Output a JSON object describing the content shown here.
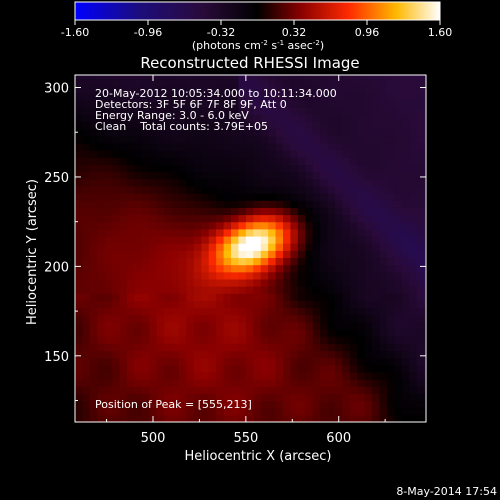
{
  "chart_data": {
    "type": "heatmap",
    "title": "Reconstructed RHESSI Image",
    "xlabel": "Heliocentric X (arcsec)",
    "ylabel": "Heliocentric Y (arcsec)",
    "xlim": [
      458,
      647
    ],
    "ylim": [
      113,
      307
    ],
    "x_ticks": [
      500,
      550,
      600
    ],
    "y_ticks": [
      150,
      200,
      250,
      300
    ],
    "colorbar": {
      "range": [
        -1.6,
        1.6
      ],
      "tick_labels": [
        "-1.60",
        "-0.96",
        "-0.32",
        "0.32",
        "0.96",
        "1.60"
      ],
      "unit": "(photons cm",
      "unit_sup1": "-2",
      "unit_mid1": " s",
      "unit_sup2": "-1",
      "unit_mid2": " asec",
      "unit_sup3": "-2",
      "unit_end": ")"
    },
    "annotations": {
      "time": "20-May-2012 10:05:34.000 to 10:11:34.000",
      "detectors": "Detectors: 3F 5F 6F 7F 8F 9F, Att 0",
      "energy": "Energy Range: 3.0 - 6.0 keV",
      "clean": "Clean    Total counts: 3.79E+05",
      "peak": "Position of Peak = [555,213]"
    },
    "peak": {
      "x": 555,
      "y": 213,
      "value": 1.6
    },
    "footer_date": "8-May-2014 17:54"
  }
}
